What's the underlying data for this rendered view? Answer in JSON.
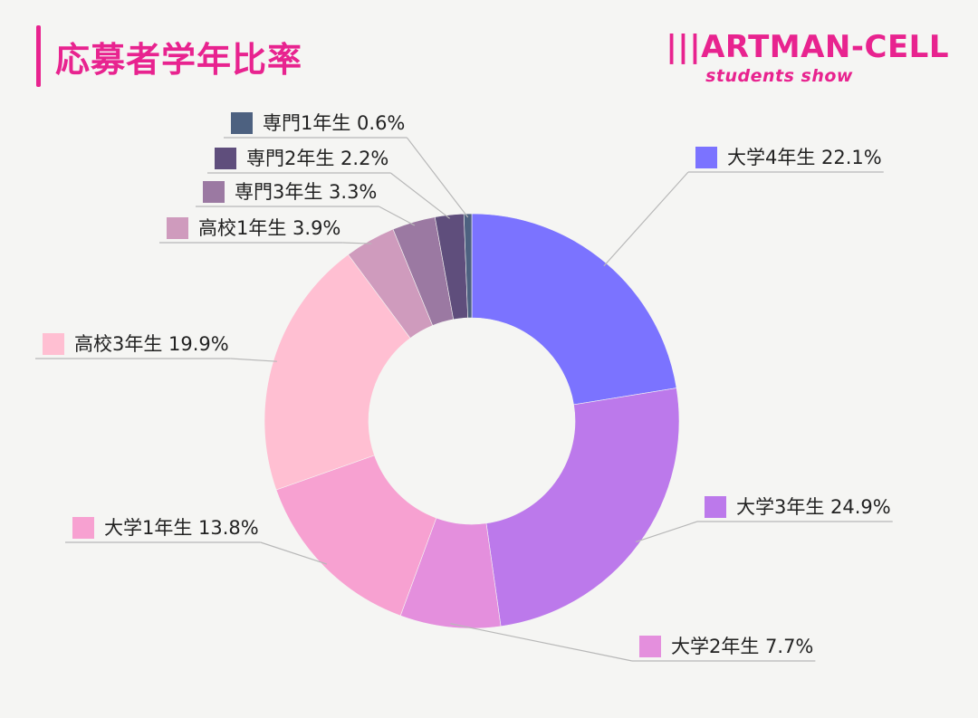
{
  "header": {
    "title": "応募者学年比率",
    "logo_main": "|||ARTMAN-CELL",
    "logo_sub": "students show"
  },
  "colors": {
    "accent": "#e8238f",
    "background": "#f5f5f3"
  },
  "chart_data": {
    "type": "pie",
    "donut": true,
    "title": "応募者学年比率",
    "slices": [
      {
        "label": "大学4年生",
        "value": 22.1,
        "display": "22.1%",
        "color": "#7b73ff"
      },
      {
        "label": "大学3年生",
        "value": 24.9,
        "display": "24.9%",
        "color": "#bc79eb"
      },
      {
        "label": "大学2年生",
        "value": 7.7,
        "display": "7.7%",
        "color": "#e48fdd"
      },
      {
        "label": "大学1年生",
        "value": 13.8,
        "display": "13.8%",
        "color": "#f7a1d1"
      },
      {
        "label": "高校3年生",
        "value": 19.9,
        "display": "19.9%",
        "color": "#ffbfd2"
      },
      {
        "label": "高校1年生",
        "value": 3.9,
        "display": "3.9%",
        "color": "#cf9bbd"
      },
      {
        "label": "専門3年生",
        "value": 3.3,
        "display": "3.3%",
        "color": "#9b79a2"
      },
      {
        "label": "専門2年生",
        "value": 2.2,
        "display": "2.2%",
        "color": "#5f4e7c"
      },
      {
        "label": "専門1年生",
        "value": 0.6,
        "display": "0.6%",
        "color": "#4d6180"
      }
    ]
  }
}
